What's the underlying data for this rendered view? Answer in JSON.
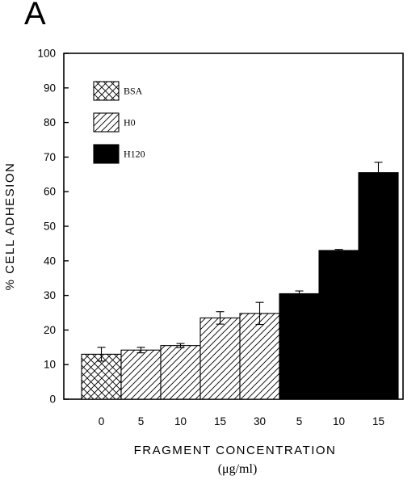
{
  "panel_label": "A",
  "chart_data": {
    "type": "bar",
    "title": "",
    "xlabel": "FRAGMENT CONCENTRATION",
    "xlabel_unit": "(μg/ml)",
    "ylabel": "% CELL ADHESION",
    "ylim": [
      0,
      100
    ],
    "yticks": [
      0,
      10,
      20,
      30,
      40,
      50,
      60,
      70,
      80,
      90,
      100
    ],
    "legend_position": "top-left",
    "series": [
      {
        "name": "BSA",
        "pattern": "crosshatch",
        "color": "#000000",
        "categories": [
          "0"
        ],
        "values": [
          13
        ],
        "errors": [
          2
        ]
      },
      {
        "name": "H0",
        "pattern": "diagonal",
        "color": "#000000",
        "categories": [
          "5",
          "10",
          "15",
          "30"
        ],
        "values": [
          14.2,
          15.5,
          23.5,
          24.8
        ],
        "errors": [
          0.8,
          0.6,
          1.8,
          3.2
        ]
      },
      {
        "name": "H120",
        "pattern": "solid",
        "color": "#000000",
        "categories": [
          "5",
          "10",
          "15"
        ],
        "values": [
          30.5,
          43,
          65.5
        ],
        "errors": [
          0.8,
          0.3,
          3
        ]
      }
    ]
  }
}
